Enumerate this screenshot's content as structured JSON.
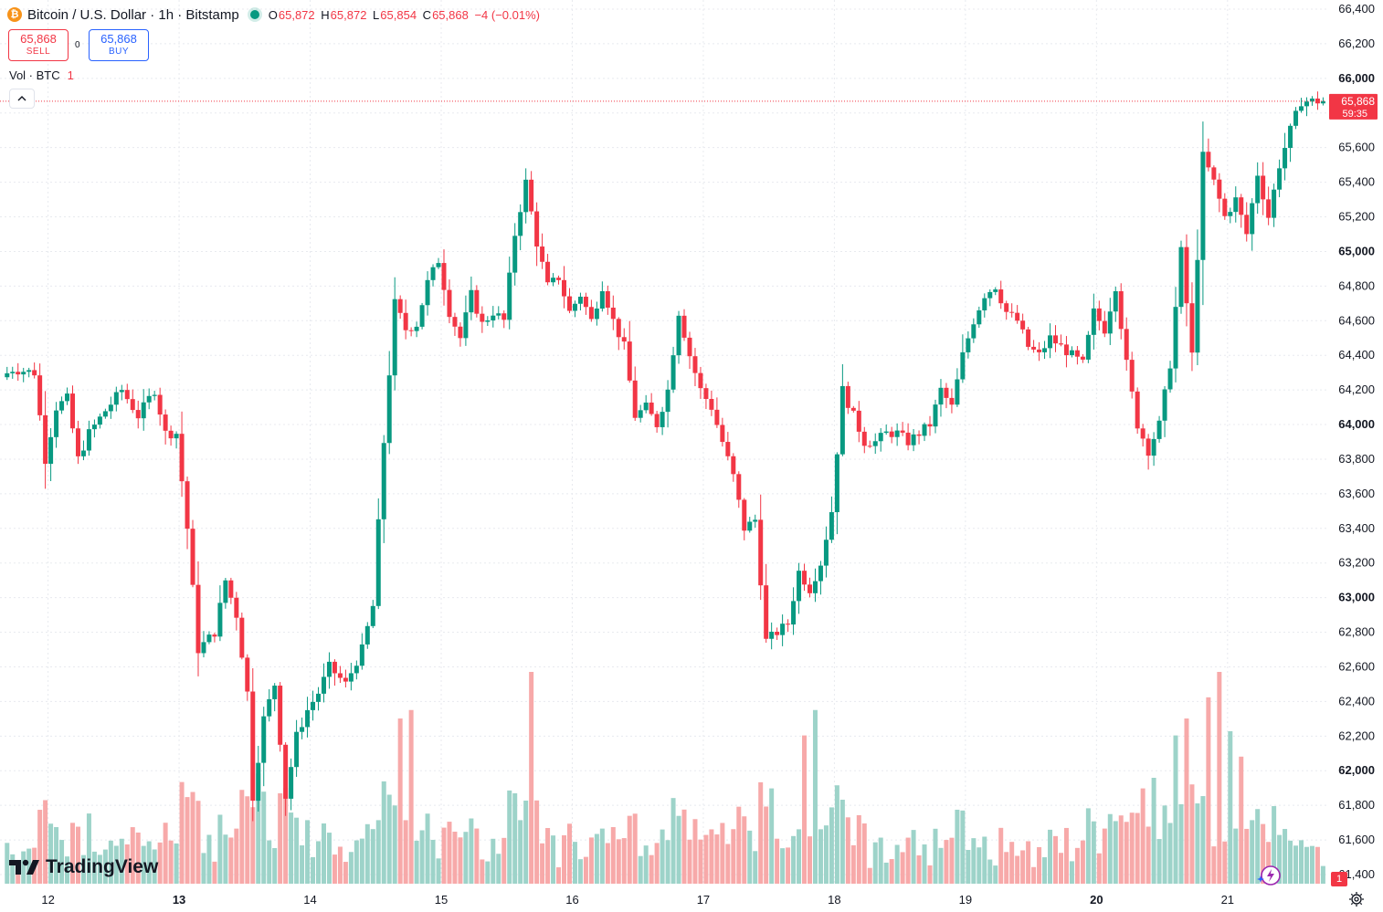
{
  "legend": {
    "coin_glyph": "₿",
    "title": "Bitcoin / U.S. Dollar · 1h · Bitstamp",
    "open_key": "O",
    "open": "65,872",
    "high_key": "H",
    "high": "65,872",
    "low_key": "L",
    "low": "65,854",
    "close_key": "C",
    "close": "65,868",
    "change": "−4 (−0.01%)"
  },
  "trade": {
    "sell_price": "65,868",
    "sell_label": "SELL",
    "spread": "0",
    "buy_price": "65,868",
    "buy_label": "BUY"
  },
  "volume_legend": {
    "label": "Vol · BTC",
    "value": "1"
  },
  "branding": {
    "name": "TradingView"
  },
  "alert_count": "1",
  "colors": {
    "up": "#089981",
    "down": "#f23645",
    "vol_up": "#9dd3c9",
    "vol_down": "#f7a9a9",
    "grid": "#e8eaef",
    "text": "#131722",
    "accent_blue": "#2962ff"
  },
  "icons": [
    "bitcoin-icon",
    "live-dot-icon",
    "collapse-chevron-icon",
    "tradingview-logo-icon",
    "lightning-sparkle-icon",
    "settings-gear-icon"
  ],
  "chart_data": {
    "type": "candlestick",
    "symbol": "Bitcoin / U.S. Dollar",
    "interval": "1h",
    "exchange": "Bitstamp",
    "ylim": [
      61350,
      66450
    ],
    "y_ticks": [
      66400,
      66200,
      66000,
      65800,
      65600,
      65400,
      65200,
      65000,
      64800,
      64600,
      64400,
      64200,
      64000,
      63800,
      63600,
      63400,
      63200,
      63000,
      62800,
      62600,
      62400,
      62200,
      62000,
      61800,
      61600,
      61400
    ],
    "y_tick_labels": [
      "66,400",
      "66,200",
      "66,000",
      "65,800",
      "65,600",
      "65,400",
      "65,200",
      "65,000",
      "64,800",
      "64,600",
      "64,400",
      "64,200",
      "64,000",
      "63,800",
      "63,600",
      "63,400",
      "63,200",
      "63,000",
      "62,800",
      "62,600",
      "62,400",
      "62,200",
      "62,000",
      "61,800",
      "61,600",
      "61,400"
    ],
    "y_tick_bold": [
      66000,
      65000,
      64000,
      63000,
      62000
    ],
    "x_ticks": [
      {
        "label": "12",
        "hour": 0
      },
      {
        "label": "13",
        "hour": 24
      },
      {
        "label": "14",
        "hour": 48
      },
      {
        "label": "15",
        "hour": 72
      },
      {
        "label": "16",
        "hour": 96
      },
      {
        "label": "17",
        "hour": 120
      },
      {
        "label": "18",
        "hour": 144
      },
      {
        "label": "19",
        "hour": 168
      },
      {
        "label": "20",
        "hour": 192
      },
      {
        "label": "21",
        "hour": 216
      }
    ],
    "x_bold": [
      "13",
      "20"
    ],
    "hour_range": [
      -8.8,
      234.1
    ],
    "last_price": 65868,
    "last_price_label": "65,868",
    "countdown": "59:35",
    "grid": true,
    "keyframes": [
      [
        -9,
        64250
      ],
      [
        -6,
        64320
      ],
      [
        -2,
        64300
      ],
      [
        0,
        63800
      ],
      [
        2,
        64100
      ],
      [
        4,
        64150
      ],
      [
        6,
        63800
      ],
      [
        8,
        63950
      ],
      [
        11,
        64080
      ],
      [
        14,
        64200
      ],
      [
        17,
        64050
      ],
      [
        20,
        64200
      ],
      [
        22,
        63950
      ],
      [
        24,
        63950
      ],
      [
        26,
        63400
      ],
      [
        28,
        62700
      ],
      [
        31,
        62800
      ],
      [
        33,
        63100
      ],
      [
        35,
        62900
      ],
      [
        37,
        62450
      ],
      [
        38,
        61850
      ],
      [
        40,
        62300
      ],
      [
        42,
        62500
      ],
      [
        44,
        61850
      ],
      [
        46,
        62200
      ],
      [
        48,
        62350
      ],
      [
        50,
        62450
      ],
      [
        52,
        62600
      ],
      [
        55,
        62500
      ],
      [
        58,
        62700
      ],
      [
        60,
        62950
      ],
      [
        62,
        63900
      ],
      [
        64,
        64700
      ],
      [
        66,
        64550
      ],
      [
        68,
        64580
      ],
      [
        70,
        64820
      ],
      [
        72,
        64950
      ],
      [
        74,
        64650
      ],
      [
        76,
        64500
      ],
      [
        78,
        64750
      ],
      [
        80,
        64580
      ],
      [
        82,
        64650
      ],
      [
        84,
        64600
      ],
      [
        86,
        65100
      ],
      [
        88,
        65400
      ],
      [
        90,
        65050
      ],
      [
        92,
        64800
      ],
      [
        94,
        64850
      ],
      [
        96,
        64650
      ],
      [
        98,
        64750
      ],
      [
        100,
        64600
      ],
      [
        102,
        64800
      ],
      [
        104,
        64600
      ],
      [
        106,
        64450
      ],
      [
        108,
        64050
      ],
      [
        110,
        64100
      ],
      [
        112,
        64000
      ],
      [
        114,
        64200
      ],
      [
        116,
        64650
      ],
      [
        118,
        64400
      ],
      [
        120,
        64200
      ],
      [
        122,
        64100
      ],
      [
        124,
        63900
      ],
      [
        126,
        63700
      ],
      [
        128,
        63400
      ],
      [
        130,
        63450
      ],
      [
        132,
        62750
      ],
      [
        134,
        62800
      ],
      [
        136,
        62850
      ],
      [
        138,
        63150
      ],
      [
        140,
        63050
      ],
      [
        142,
        63200
      ],
      [
        144,
        63500
      ],
      [
        146,
        64200
      ],
      [
        148,
        64050
      ],
      [
        150,
        63900
      ],
      [
        152,
        63900
      ],
      [
        154,
        63950
      ],
      [
        156,
        63950
      ],
      [
        158,
        63900
      ],
      [
        160,
        63950
      ],
      [
        162,
        64000
      ],
      [
        164,
        64200
      ],
      [
        166,
        64100
      ],
      [
        168,
        64400
      ],
      [
        170,
        64600
      ],
      [
        172,
        64750
      ],
      [
        174,
        64800
      ],
      [
        176,
        64650
      ],
      [
        178,
        64600
      ],
      [
        180,
        64450
      ],
      [
        182,
        64400
      ],
      [
        184,
        64500
      ],
      [
        186,
        64450
      ],
      [
        188,
        64400
      ],
      [
        190,
        64350
      ],
      [
        192,
        64650
      ],
      [
        194,
        64550
      ],
      [
        196,
        64800
      ],
      [
        198,
        64350
      ],
      [
        200,
        64000
      ],
      [
        202,
        63850
      ],
      [
        204,
        64000
      ],
      [
        206,
        64350
      ],
      [
        208,
        65000
      ],
      [
        210,
        64400
      ],
      [
        212,
        65550
      ],
      [
        214,
        65400
      ],
      [
        216,
        65200
      ],
      [
        218,
        65300
      ],
      [
        220,
        65100
      ],
      [
        222,
        65450
      ],
      [
        224,
        65200
      ],
      [
        226,
        65500
      ],
      [
        228,
        65700
      ],
      [
        230,
        65868
      ],
      [
        234.1,
        65868
      ]
    ],
    "volume_spikes": [
      [
        24,
        0.48
      ],
      [
        38,
        0.52
      ],
      [
        64,
        0.78
      ],
      [
        66,
        0.82
      ],
      [
        88,
        1.0
      ],
      [
        132,
        0.45
      ],
      [
        138,
        0.7
      ],
      [
        140,
        0.82
      ],
      [
        212,
        0.88
      ],
      [
        214,
        1.0
      ],
      [
        216,
        0.72
      ],
      [
        218,
        0.6
      ],
      [
        206,
        0.7
      ],
      [
        208,
        0.78
      ],
      [
        200,
        0.45
      ],
      [
        202,
        0.5
      ],
      [
        220,
        0.3
      ],
      [
        60,
        0.3
      ],
      [
        86,
        0.3
      ],
      [
        116,
        0.35
      ]
    ]
  }
}
